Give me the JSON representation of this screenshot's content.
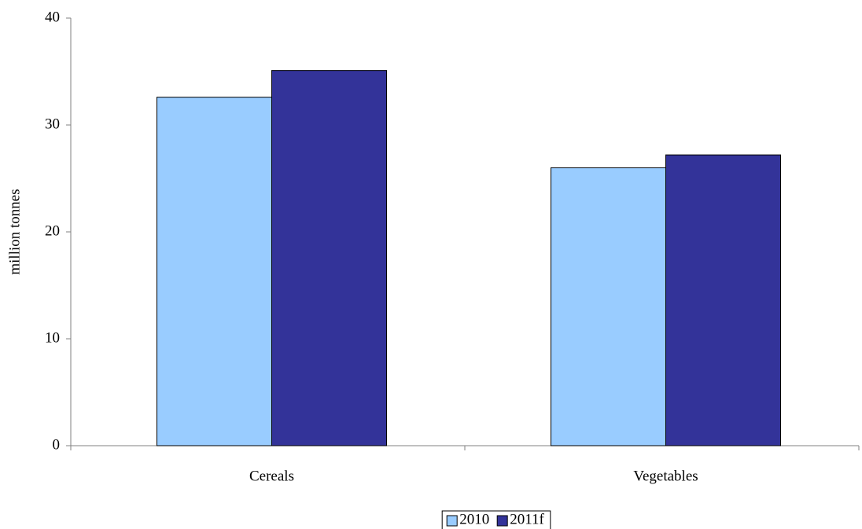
{
  "chart_data": {
    "type": "bar",
    "y_label": "million tonnes",
    "categories": [
      "Cereals",
      "Vegetables"
    ],
    "series": [
      {
        "name": "2010",
        "color": "#99ccff",
        "values": [
          32.6,
          26.0
        ]
      },
      {
        "name": "2011f",
        "color": "#333399",
        "values": [
          35.1,
          27.2
        ]
      }
    ],
    "ylim": [
      0,
      40
    ],
    "yticks": [
      0,
      10,
      20,
      30,
      40
    ],
    "grid": false,
    "legend": "bottom"
  }
}
